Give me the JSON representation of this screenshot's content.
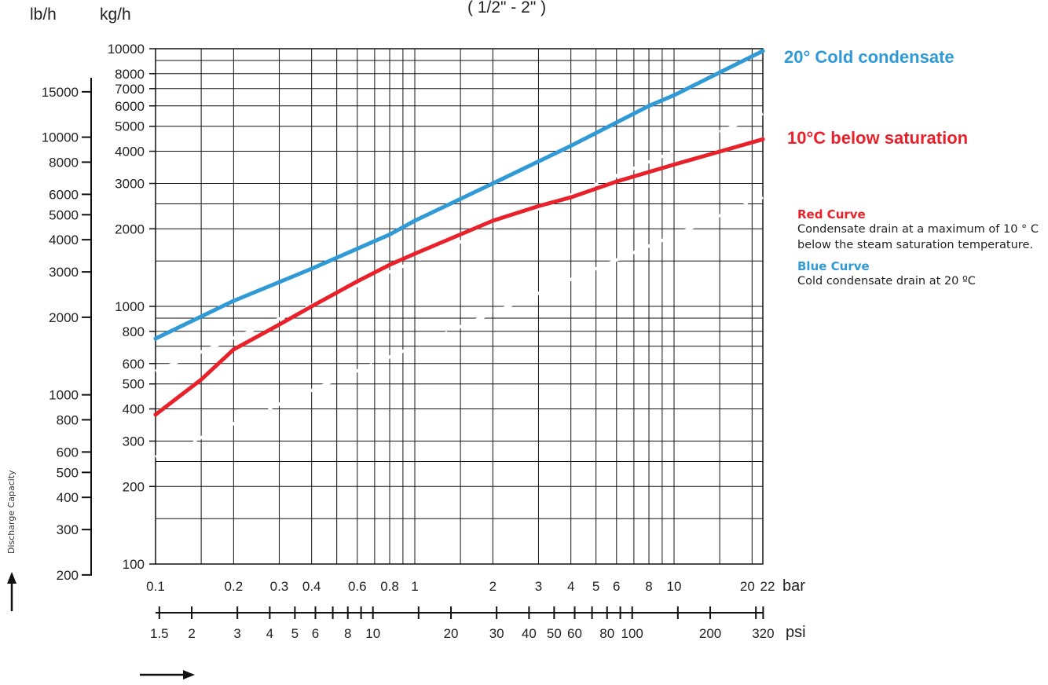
{
  "header": {
    "subtitle": "( 1/2\" - 2\" )"
  },
  "axes": {
    "lbh_unit": "lb/h",
    "kgh_unit": "kg/h",
    "bar_unit": "bar",
    "psi_unit": "psi",
    "vertical_label": "Discharge Capacity"
  },
  "notes": {
    "red_title": "Red Curve",
    "red_text": "Condensate drain at a maximum of 10 ° C below the steam saturation temperature.",
    "blue_title": "Blue Curve",
    "blue_text": "Cold condensate drain at 20 ºC"
  },
  "colors": {
    "red": "#e8212b",
    "blue": "#2f9ad6",
    "grid": "#111111"
  },
  "chart_data": {
    "type": "line",
    "x_scale": "log",
    "y_scale": "log",
    "xlim": [
      0.1,
      22
    ],
    "ylim": [
      100,
      10000
    ],
    "xlabel": "bar",
    "ylabel": "kg/h",
    "grid": true,
    "x_ticks": [
      {
        "v": 0.1,
        "label": "0.1"
      },
      {
        "v": 0.2,
        "label": "0.2"
      },
      {
        "v": 0.3,
        "label": "0.3"
      },
      {
        "v": 0.4,
        "label": "0.4"
      },
      {
        "v": 0.6,
        "label": "0.6"
      },
      {
        "v": 0.8,
        "label": "0.8"
      },
      {
        "v": 1,
        "label": "1"
      },
      {
        "v": 2,
        "label": "2"
      },
      {
        "v": 3,
        "label": "3"
      },
      {
        "v": 4,
        "label": "4"
      },
      {
        "v": 5,
        "label": "5"
      },
      {
        "v": 6,
        "label": "6"
      },
      {
        "v": 8,
        "label": "8"
      },
      {
        "v": 10,
        "label": "10"
      },
      {
        "v": 20,
        "label": "20"
      },
      {
        "v": 22,
        "label": "22"
      }
    ],
    "y_ticks_kgh": [
      {
        "v": 100,
        "label": "100"
      },
      {
        "v": 200,
        "label": "200"
      },
      {
        "v": 300,
        "label": "300"
      },
      {
        "v": 400,
        "label": "400"
      },
      {
        "v": 500,
        "label": "500"
      },
      {
        "v": 600,
        "label": "600"
      },
      {
        "v": 800,
        "label": "800"
      },
      {
        "v": 1000,
        "label": "1000"
      },
      {
        "v": 2000,
        "label": "2000"
      },
      {
        "v": 3000,
        "label": "3000"
      },
      {
        "v": 4000,
        "label": "4000"
      },
      {
        "v": 5000,
        "label": "5000"
      },
      {
        "v": 6000,
        "label": "6000"
      },
      {
        "v": 7000,
        "label": "7000"
      },
      {
        "v": 8000,
        "label": "8000"
      },
      {
        "v": 10000,
        "label": "10000"
      }
    ],
    "y_ticks_lbh": [
      {
        "v": 200,
        "label": "200"
      },
      {
        "v": 300,
        "label": "300"
      },
      {
        "v": 400,
        "label": "400"
      },
      {
        "v": 500,
        "label": "500"
      },
      {
        "v": 600,
        "label": "600"
      },
      {
        "v": 800,
        "label": "800"
      },
      {
        "v": 1000,
        "label": "1000"
      },
      {
        "v": 2000,
        "label": "2000"
      },
      {
        "v": 3000,
        "label": "3000"
      },
      {
        "v": 4000,
        "label": "4000"
      },
      {
        "v": 5000,
        "label": "5000"
      },
      {
        "v": 6000,
        "label": "6000"
      },
      {
        "v": 8000,
        "label": "8000"
      },
      {
        "v": 10000,
        "label": "10000"
      },
      {
        "v": 15000,
        "label": "15000"
      }
    ],
    "psi_ticks": [
      {
        "v": 1.5,
        "label": "1.5"
      },
      {
        "v": 2,
        "label": "2"
      },
      {
        "v": 3,
        "label": "3"
      },
      {
        "v": 4,
        "label": "4"
      },
      {
        "v": 5,
        "label": "5"
      },
      {
        "v": 6,
        "label": "6"
      },
      {
        "v": 8,
        "label": "8"
      },
      {
        "v": 10,
        "label": "10"
      },
      {
        "v": 20,
        "label": "20"
      },
      {
        "v": 30,
        "label": "30"
      },
      {
        "v": 40,
        "label": "40"
      },
      {
        "v": 50,
        "label": "50"
      },
      {
        "v": 60,
        "label": "60"
      },
      {
        "v": 80,
        "label": "80"
      },
      {
        "v": 100,
        "label": "100"
      },
      {
        "v": 200,
        "label": "200"
      },
      {
        "v": 320,
        "label": "320"
      }
    ],
    "series": [
      {
        "name": "20° Cold condensate",
        "color": "#2f9ad6",
        "x": [
          0.1,
          0.2,
          0.4,
          0.8,
          1,
          2,
          4,
          8,
          10,
          22
        ],
        "y": [
          750,
          1050,
          1400,
          1900,
          2150,
          3000,
          4200,
          6000,
          6600,
          9800
        ]
      },
      {
        "name": "10°C below saturation",
        "color": "#e8212b",
        "x": [
          0.1,
          0.15,
          0.2,
          0.3,
          0.4,
          0.6,
          0.8,
          1,
          2,
          3,
          4,
          6,
          10,
          22
        ],
        "y": [
          380,
          520,
          680,
          850,
          1000,
          1250,
          1450,
          1600,
          2150,
          2450,
          2650,
          3050,
          3550,
          4450
        ]
      }
    ],
    "faint_lines": [
      {
        "x": [
          0.1,
          22
        ],
        "y": [
          560,
          5600
        ]
      },
      {
        "x": [
          0.1,
          22
        ],
        "y": [
          260,
          2650
        ]
      }
    ]
  }
}
